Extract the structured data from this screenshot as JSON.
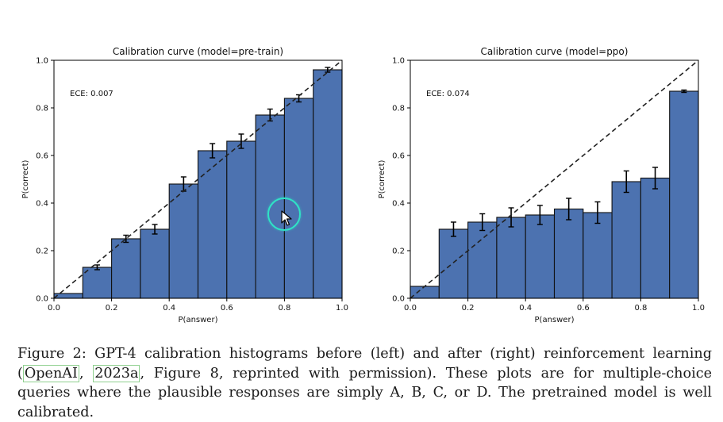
{
  "chart_data": [
    {
      "type": "bar",
      "title": "Calibration curve (model=pre-train)",
      "xlabel": "P(answer)",
      "ylabel": "P(correct)",
      "annotation": "ECE: 0.007",
      "xlim": [
        0,
        1
      ],
      "ylim": [
        0,
        1
      ],
      "xticks": [
        "0.0",
        "0.2",
        "0.4",
        "0.6",
        "0.8",
        "1.0"
      ],
      "yticks": [
        "0.0",
        "0.2",
        "0.4",
        "0.6",
        "0.8",
        "1.0"
      ],
      "bin_edges": [
        0,
        0.1,
        0.2,
        0.3,
        0.4,
        0.5,
        0.6,
        0.7,
        0.8,
        0.9,
        1.0
      ],
      "values": [
        0.02,
        0.13,
        0.25,
        0.29,
        0.48,
        0.62,
        0.66,
        0.77,
        0.84,
        0.96
      ],
      "errors": [
        0,
        0.01,
        0.015,
        0.02,
        0.03,
        0.03,
        0.03,
        0.025,
        0.015,
        0.01
      ],
      "diagonal": true,
      "bar_color": "#4c72b0"
    },
    {
      "type": "bar",
      "title": "Calibration curve (model=ppo)",
      "xlabel": "P(answer)",
      "ylabel": "P(correct)",
      "annotation": "ECE: 0.074",
      "xlim": [
        0,
        1
      ],
      "ylim": [
        0,
        1
      ],
      "xticks": [
        "0.0",
        "0.2",
        "0.4",
        "0.6",
        "0.8",
        "1.0"
      ],
      "yticks": [
        "0.0",
        "0.2",
        "0.4",
        "0.6",
        "0.8",
        "1.0"
      ],
      "bin_edges": [
        0,
        0.1,
        0.2,
        0.3,
        0.4,
        0.5,
        0.6,
        0.7,
        0.8,
        0.9,
        1.0
      ],
      "values": [
        0.05,
        0.29,
        0.32,
        0.34,
        0.35,
        0.375,
        0.36,
        0.49,
        0.505,
        0.87
      ],
      "errors": [
        0,
        0.03,
        0.035,
        0.04,
        0.04,
        0.045,
        0.045,
        0.045,
        0.045,
        0.005
      ],
      "diagonal": true,
      "bar_color": "#4c72b0"
    }
  ],
  "caption": {
    "part1": "Figure 2:  GPT-4 calibration histograms before (left) and after (right) reinforcement learning (",
    "cite_author": "OpenAI",
    "sep": ", ",
    "cite_year": "2023a",
    "part2": ", Figure 8, reprinted with permission). These plots are for multiple-choice queries where the plausible responses are simply A, B, C, or D. The pretrained model is well calibrated."
  }
}
